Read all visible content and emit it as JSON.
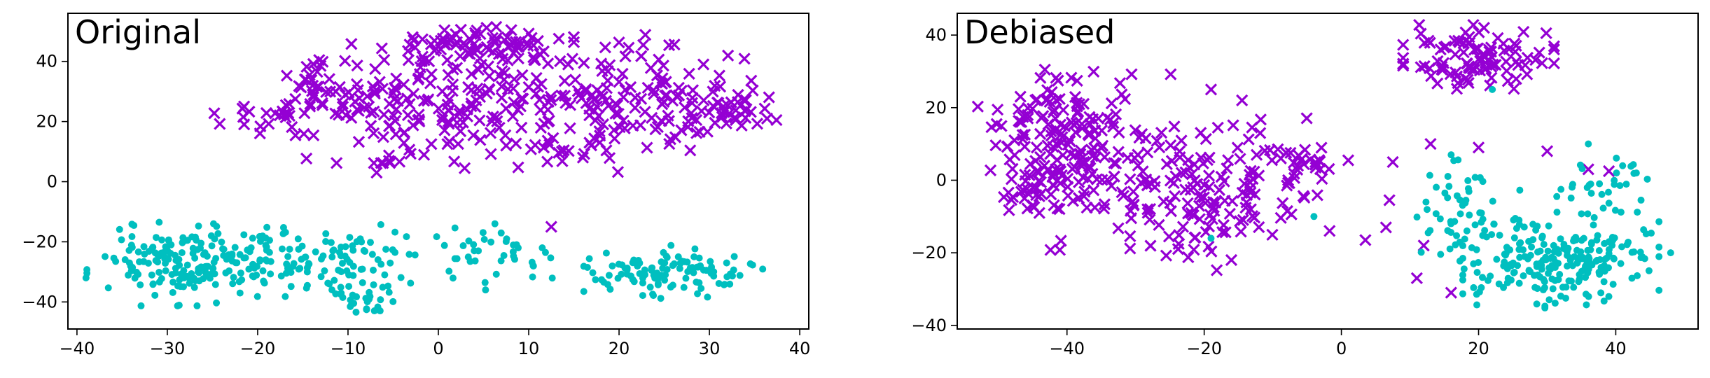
{
  "chart_data": [
    {
      "type": "scatter",
      "title": "Original",
      "xlim": [
        -41,
        41
      ],
      "ylim": [
        -49,
        56
      ],
      "xticks": [
        -40,
        -30,
        -20,
        -10,
        0,
        10,
        20,
        30,
        40
      ],
      "yticks": [
        -40,
        -20,
        0,
        20,
        40
      ],
      "xtick_labels": [
        "−40",
        "−30",
        "−20",
        "−10",
        "0",
        "10",
        "20",
        "30",
        "40"
      ],
      "ytick_labels": [
        "−40",
        "−20",
        "0",
        "20",
        "40"
      ],
      "grid": false,
      "series": [
        {
          "marker": "x",
          "color": "#9400d3",
          "clusters": [
            {
              "cx": 4,
              "cy": 46,
              "sx": 5,
              "sy": 2.5,
              "n": 60
            },
            {
              "cx": -14,
              "cy": 35,
              "sx": 2,
              "sy": 4,
              "n": 18
            },
            {
              "cx": -16,
              "cy": 22,
              "sx": 4,
              "sy": 3,
              "n": 30
            },
            {
              "cx": -8,
              "cy": 26,
              "sx": 3,
              "sy": 9,
              "n": 60
            },
            {
              "cx": 0,
              "cy": 25,
              "sx": 3.5,
              "sy": 10,
              "n": 70
            },
            {
              "cx": 8,
              "cy": 27,
              "sx": 4,
              "sy": 11,
              "n": 80
            },
            {
              "cx": 18,
              "cy": 30,
              "sx": 4,
              "sy": 9,
              "n": 60
            },
            {
              "cx": 26,
              "cy": 28,
              "sx": 4,
              "sy": 8,
              "n": 70
            },
            {
              "cx": 33,
              "cy": 23,
              "sx": 2.5,
              "sy": 4,
              "n": 30
            },
            {
              "cx": 15,
              "cy": 12,
              "sx": 3,
              "sy": 4,
              "n": 15
            }
          ],
          "points": [
            [
              -21.5,
              25
            ],
            [
              12.5,
              -15
            ],
            [
              16,
              8
            ]
          ]
        },
        {
          "marker": "o",
          "color": "#00bfbf",
          "clusters": [
            {
              "cx": -29,
              "cy": -27,
              "sx": 4.5,
              "sy": 6.5,
              "n": 150
            },
            {
              "cx": -18,
              "cy": -25,
              "sx": 4,
              "sy": 6,
              "n": 80
            },
            {
              "cx": -9,
              "cy": -26,
              "sx": 2.5,
              "sy": 6,
              "n": 50
            },
            {
              "cx": -7.5,
              "cy": -39,
              "sx": 1.5,
              "sy": 2.5,
              "n": 25
            },
            {
              "cx": 4,
              "cy": -25,
              "sx": 4,
              "sy": 5,
              "n": 45
            },
            {
              "cx": 26,
              "cy": -30,
              "sx": 4.5,
              "sy": 4,
              "n": 110
            }
          ],
          "points": [
            [
              16.5,
              -28.5
            ],
            [
              11.5,
              -22
            ],
            [
              10.5,
              -28
            ],
            [
              -39,
              -32
            ]
          ]
        }
      ]
    },
    {
      "type": "scatter",
      "title": "Debiased",
      "xlim": [
        -56,
        52
      ],
      "ylim": [
        -41,
        46
      ],
      "xticks": [
        -40,
        -20,
        0,
        20,
        40
      ],
      "yticks": [
        -40,
        -20,
        0,
        20,
        40
      ],
      "xtick_labels": [
        "−40",
        "−20",
        "0",
        "20",
        "40"
      ],
      "ytick_labels": [
        "−40",
        "−20",
        "0",
        "20",
        "40"
      ],
      "grid": false,
      "series": [
        {
          "marker": "x",
          "color": "#9400d3",
          "clusters": [
            {
              "cx": 20,
              "cy": 34,
              "sx": 5,
              "sy": 4,
              "n": 100
            },
            {
              "cx": -44,
              "cy": 0,
              "sx": 3.5,
              "sy": 5,
              "n": 60
            },
            {
              "cx": -42,
              "cy": 18,
              "sx": 5,
              "sy": 6,
              "n": 80
            },
            {
              "cx": -35,
              "cy": 5,
              "sx": 5,
              "sy": 11,
              "n": 90
            },
            {
              "cx": -22,
              "cy": -5,
              "sx": 4,
              "sy": 9,
              "n": 80
            },
            {
              "cx": -12,
              "cy": 0,
              "sx": 5,
              "sy": 10,
              "n": 60
            },
            {
              "cx": -5,
              "cy": 4,
              "sx": 2,
              "sy": 4,
              "n": 20
            }
          ],
          "points": [
            [
              1,
              5.5
            ],
            [
              7.5,
              5
            ],
            [
              7,
              -5.5
            ],
            [
              6.5,
              -13
            ],
            [
              3.5,
              -16.5
            ],
            [
              12,
              -18
            ],
            [
              11,
              -27
            ],
            [
              16,
              -31
            ],
            [
              13,
              10
            ],
            [
              20,
              9
            ],
            [
              30,
              8
            ],
            [
              36,
              3
            ],
            [
              39,
              2.5
            ],
            [
              -19,
              25
            ]
          ]
        },
        {
          "marker": "o",
          "color": "#00bfbf",
          "clusters": [
            {
              "cx": 32,
              "cy": -22,
              "sx": 6.5,
              "sy": 6,
              "n": 220
            },
            {
              "cx": 18,
              "cy": -12,
              "sx": 4,
              "sy": 8,
              "n": 60
            },
            {
              "cx": 38,
              "cy": -2,
              "sx": 3,
              "sy": 4,
              "n": 30
            }
          ],
          "points": [
            [
              -19,
              -16
            ],
            [
              -4,
              -10
            ],
            [
              22,
              25
            ],
            [
              16,
              7
            ],
            [
              36,
              10
            ],
            [
              41,
              4
            ],
            [
              43,
              2
            ],
            [
              48,
              -20
            ]
          ]
        }
      ]
    }
  ]
}
